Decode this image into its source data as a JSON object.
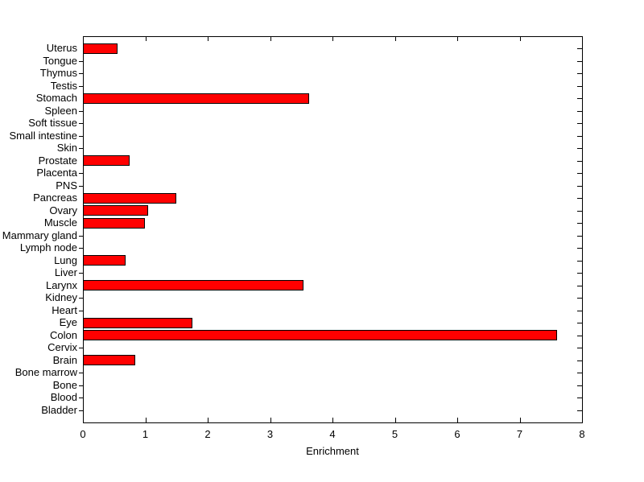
{
  "figure": {
    "background": "#ffffff",
    "axis_color": "#000000",
    "bar_fill": "#ff0000",
    "bar_edge": "#000000"
  },
  "chart_data": {
    "type": "bar",
    "orientation": "horizontal",
    "title": "",
    "xlabel": "Enrichment",
    "ylabel": "",
    "xlim": [
      0,
      8
    ],
    "x_ticks": [
      0,
      1,
      2,
      3,
      4,
      5,
      6,
      7,
      8
    ],
    "x_tick_labels": [
      "0",
      "1",
      "2",
      "3",
      "4",
      "5",
      "6",
      "7",
      "8"
    ],
    "grid": false,
    "legend": null,
    "categories": [
      "Uterus",
      "Tongue",
      "Thymus",
      "Testis",
      "Stomach",
      "Spleen",
      "Soft tissue",
      "Small intestine",
      "Skin",
      "Prostate",
      "Placenta",
      "PNS",
      "Pancreas",
      "Ovary",
      "Muscle",
      "Mammary gland",
      "Lymph node",
      "Lung",
      "Liver",
      "Larynx",
      "Kidney",
      "Heart",
      "Eye",
      "Colon",
      "Cervix",
      "Brain",
      "Bone marrow",
      "Bone",
      "Blood",
      "Bladder"
    ],
    "values": [
      0.55,
      0,
      0,
      0,
      3.63,
      0,
      0,
      0,
      0,
      0.75,
      0,
      0,
      1.5,
      1.04,
      0.99,
      0,
      0,
      0.69,
      0,
      3.54,
      0,
      0,
      1.75,
      7.6,
      0,
      0.84,
      0,
      0,
      0,
      0
    ]
  }
}
